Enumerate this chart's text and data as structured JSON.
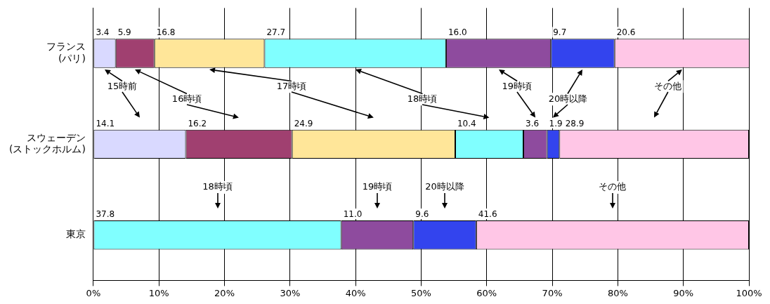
{
  "chart_data": {
    "type": "bar",
    "orientation": "horizontal",
    "stacked": true,
    "grid": "x",
    "categories": [
      "フランス\n(パリ)",
      "スウェーデン\n(ストックホルム)",
      "東京"
    ],
    "xlim": [
      0,
      100
    ],
    "xticks": [
      {
        "value": 0,
        "label": "0%"
      },
      {
        "value": 10,
        "label": "10%"
      },
      {
        "value": 20,
        "label": "20%"
      },
      {
        "value": 30,
        "label": "30%"
      },
      {
        "value": 40,
        "label": "40%"
      },
      {
        "value": 50,
        "label": "50%"
      },
      {
        "value": 60,
        "label": "60%"
      },
      {
        "value": 70,
        "label": "70%"
      },
      {
        "value": 80,
        "label": "80%"
      },
      {
        "value": 90,
        "label": "90%"
      },
      {
        "value": 100,
        "label": "100%"
      }
    ],
    "series": [
      {
        "name": "15時前",
        "color": "#d9d9ff",
        "values": [
          3.4,
          14.1,
          null
        ],
        "value_labels": [
          "3.4",
          "14.1",
          null
        ]
      },
      {
        "name": "16時頃",
        "color": "#a04070",
        "values": [
          5.9,
          16.2,
          null
        ],
        "value_labels": [
          "5.9",
          "16.2",
          null
        ]
      },
      {
        "name": "17時頃",
        "color": "#ffe699",
        "values": [
          16.8,
          24.9,
          null
        ],
        "value_labels": [
          "16.8",
          "24.9",
          null
        ]
      },
      {
        "name": "18時頃",
        "color": "#80ffff",
        "values": [
          27.7,
          10.4,
          37.8
        ],
        "value_labels": [
          "27.7",
          "10.4",
          "37.8"
        ]
      },
      {
        "name": "19時頃",
        "color": "#8e4b9e",
        "values": [
          16.0,
          3.6,
          11.0
        ],
        "value_labels": [
          "16.0",
          "3.6",
          "11.0"
        ]
      },
      {
        "name": "20時以降",
        "color": "#3344ee",
        "values": [
          9.7,
          1.9,
          9.6
        ],
        "value_labels": [
          "9.7",
          "1.9",
          "9.6"
        ]
      },
      {
        "name": "その他",
        "color": "#ffc6e6",
        "values": [
          20.6,
          28.9,
          41.6
        ],
        "value_labels": [
          "20.6",
          "28.9",
          "41.6"
        ]
      }
    ]
  }
}
